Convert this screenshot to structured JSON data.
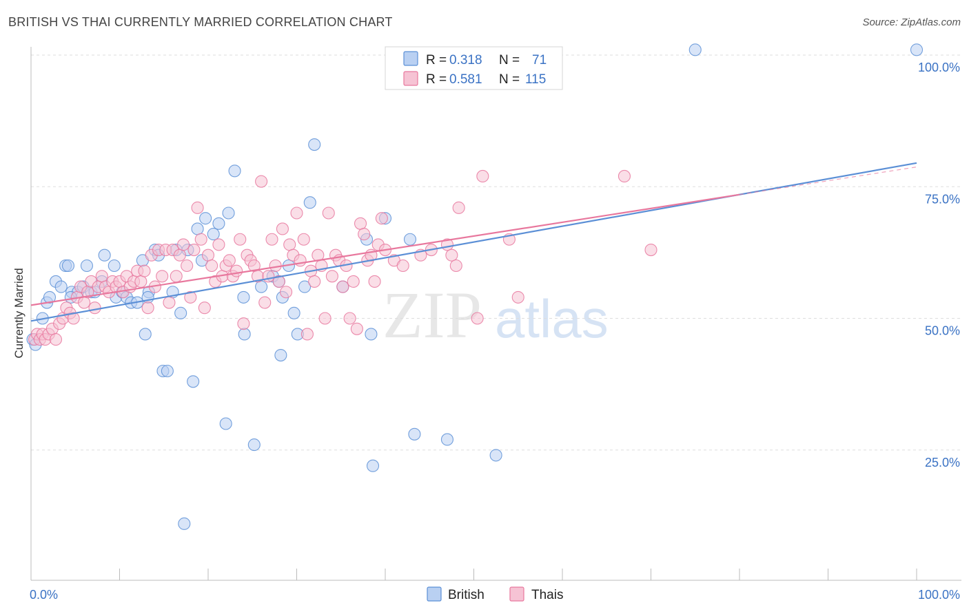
{
  "header": {
    "title": "BRITISH VS THAI CURRENTLY MARRIED CORRELATION CHART",
    "source": "Source: ZipAtlas.com"
  },
  "colors": {
    "british": "#5b8fd6",
    "british_fill": "#b9d0f2",
    "thais": "#e8779d",
    "thais_fill": "#f6c3d4",
    "axis_label": "#3a72c4",
    "grid": "#dddddd"
  },
  "legend": {
    "r_label": "R =",
    "n_label": "N =",
    "british": {
      "r": "0.318",
      "n": "71"
    },
    "thais": {
      "r": "0.581",
      "n": "115"
    }
  },
  "watermark": {
    "zip": "ZIP",
    "atlas": "atlas"
  },
  "chart_data": {
    "type": "scatter",
    "title": "BRITISH VS THAI CURRENTLY MARRIED CORRELATION CHART",
    "xlabel": "",
    "ylabel": "Currently Married",
    "xlim": [
      0,
      100
    ],
    "ylim": [
      0,
      105
    ],
    "x_tick_labels": [
      "0.0%",
      "100.0%"
    ],
    "y_ticks": [
      25,
      50,
      75,
      100
    ],
    "y_tick_labels": [
      "25.0%",
      "50.0%",
      "75.0%",
      "100.0%"
    ],
    "grid": true,
    "legend_position": "top-center",
    "series": [
      {
        "name": "British",
        "trend": {
          "x0": 0,
          "y0": 49.5,
          "x1": 100,
          "y1": 79.5
        },
        "points": [
          [
            0.2,
            46
          ],
          [
            0.5,
            45
          ],
          [
            1.3,
            50
          ],
          [
            1.8,
            53
          ],
          [
            2.1,
            54
          ],
          [
            2.8,
            57
          ],
          [
            3.4,
            56
          ],
          [
            3.9,
            60
          ],
          [
            4.2,
            60
          ],
          [
            4.6,
            55
          ],
          [
            5.3,
            55
          ],
          [
            5.9,
            56
          ],
          [
            6.3,
            60
          ],
          [
            6.8,
            55
          ],
          [
            7.2,
            55
          ],
          [
            8.0,
            57
          ],
          [
            8.3,
            62
          ],
          [
            9.4,
            60
          ],
          [
            9.6,
            54
          ],
          [
            10.3,
            55
          ],
          [
            10.8,
            54
          ],
          [
            11.3,
            53
          ],
          [
            12.0,
            53
          ],
          [
            12.6,
            61
          ],
          [
            12.9,
            47
          ],
          [
            13.3,
            55
          ],
          [
            14.0,
            63
          ],
          [
            14.4,
            62
          ],
          [
            14.9,
            40
          ],
          [
            15.4,
            40
          ],
          [
            16.0,
            55
          ],
          [
            16.4,
            63
          ],
          [
            16.9,
            51
          ],
          [
            17.3,
            11
          ],
          [
            17.7,
            63
          ],
          [
            18.3,
            38
          ],
          [
            18.8,
            67
          ],
          [
            19.3,
            61
          ],
          [
            19.7,
            69
          ],
          [
            20.6,
            66
          ],
          [
            21.2,
            68
          ],
          [
            22.0,
            30
          ],
          [
            22.3,
            70
          ],
          [
            23.0,
            78
          ],
          [
            24.0,
            54
          ],
          [
            24.1,
            47
          ],
          [
            25.2,
            26
          ],
          [
            27.3,
            58
          ],
          [
            28.0,
            57
          ],
          [
            28.2,
            43
          ],
          [
            28.4,
            54
          ],
          [
            29.1,
            60
          ],
          [
            29.7,
            51
          ],
          [
            30.1,
            47
          ],
          [
            30.9,
            56
          ],
          [
            31.5,
            72
          ],
          [
            32.0,
            83
          ],
          [
            35.2,
            56
          ],
          [
            37.9,
            65
          ],
          [
            38.6,
            22
          ],
          [
            38.4,
            47
          ],
          [
            40.0,
            69
          ],
          [
            42.8,
            65
          ],
          [
            43.3,
            28
          ],
          [
            47.0,
            27
          ],
          [
            52.5,
            24
          ],
          [
            75.0,
            101
          ],
          [
            100.0,
            101
          ],
          [
            4.5,
            54
          ],
          [
            13.2,
            54
          ],
          [
            26.0,
            56
          ]
        ]
      },
      {
        "name": "Thais",
        "trend": {
          "x0": 0,
          "y0": 52.5,
          "x1": 80,
          "y1": 73.5
        },
        "points": [
          [
            0.4,
            46
          ],
          [
            0.7,
            47
          ],
          [
            1.0,
            46
          ],
          [
            1.3,
            47
          ],
          [
            1.6,
            46
          ],
          [
            2.0,
            47
          ],
          [
            2.4,
            48
          ],
          [
            2.8,
            46
          ],
          [
            3.2,
            49
          ],
          [
            3.6,
            50
          ],
          [
            4.0,
            52
          ],
          [
            4.4,
            51
          ],
          [
            4.8,
            50
          ],
          [
            5.2,
            54
          ],
          [
            5.6,
            56
          ],
          [
            6.0,
            53
          ],
          [
            6.4,
            55
          ],
          [
            6.8,
            57
          ],
          [
            7.2,
            52
          ],
          [
            7.6,
            56
          ],
          [
            8.0,
            58
          ],
          [
            8.4,
            56
          ],
          [
            8.8,
            55
          ],
          [
            9.2,
            57
          ],
          [
            9.6,
            56
          ],
          [
            10.0,
            57
          ],
          [
            10.4,
            55
          ],
          [
            10.8,
            58
          ],
          [
            11.2,
            56
          ],
          [
            11.6,
            57
          ],
          [
            12.0,
            59
          ],
          [
            12.4,
            57
          ],
          [
            12.8,
            59
          ],
          [
            13.2,
            52
          ],
          [
            13.6,
            62
          ],
          [
            14.0,
            56
          ],
          [
            14.4,
            63
          ],
          [
            14.8,
            58
          ],
          [
            15.2,
            63
          ],
          [
            15.6,
            53
          ],
          [
            16.0,
            63
          ],
          [
            16.4,
            58
          ],
          [
            16.8,
            62
          ],
          [
            17.2,
            64
          ],
          [
            17.6,
            60
          ],
          [
            18.0,
            54
          ],
          [
            18.4,
            63
          ],
          [
            18.8,
            71
          ],
          [
            19.2,
            65
          ],
          [
            19.6,
            52
          ],
          [
            20.0,
            62
          ],
          [
            20.4,
            60
          ],
          [
            20.8,
            57
          ],
          [
            21.2,
            64
          ],
          [
            21.6,
            58
          ],
          [
            22.0,
            60
          ],
          [
            22.4,
            61
          ],
          [
            22.8,
            58
          ],
          [
            23.2,
            59
          ],
          [
            23.6,
            65
          ],
          [
            24.0,
            49
          ],
          [
            24.4,
            62
          ],
          [
            24.8,
            61
          ],
          [
            25.2,
            60
          ],
          [
            25.6,
            58
          ],
          [
            26.0,
            76
          ],
          [
            26.4,
            53
          ],
          [
            26.8,
            58
          ],
          [
            27.2,
            65
          ],
          [
            27.6,
            60
          ],
          [
            28.0,
            57
          ],
          [
            28.4,
            67
          ],
          [
            28.8,
            55
          ],
          [
            29.2,
            64
          ],
          [
            29.6,
            62
          ],
          [
            30.0,
            70
          ],
          [
            30.4,
            61
          ],
          [
            30.8,
            65
          ],
          [
            31.2,
            47
          ],
          [
            31.6,
            59
          ],
          [
            32.0,
            57
          ],
          [
            32.4,
            62
          ],
          [
            32.8,
            60
          ],
          [
            33.2,
            50
          ],
          [
            33.6,
            70
          ],
          [
            34.0,
            58
          ],
          [
            34.4,
            62
          ],
          [
            34.8,
            61
          ],
          [
            35.2,
            56
          ],
          [
            35.6,
            60
          ],
          [
            36.0,
            50
          ],
          [
            36.4,
            57
          ],
          [
            36.8,
            48
          ],
          [
            37.2,
            68
          ],
          [
            37.6,
            66
          ],
          [
            38.0,
            61
          ],
          [
            38.4,
            62
          ],
          [
            38.8,
            57
          ],
          [
            39.2,
            64
          ],
          [
            39.6,
            69
          ],
          [
            40.0,
            63
          ],
          [
            41.0,
            61
          ],
          [
            42.0,
            60
          ],
          [
            44.0,
            62
          ],
          [
            45.2,
            63
          ],
          [
            47.0,
            64
          ],
          [
            47.5,
            62
          ],
          [
            48.0,
            60
          ],
          [
            48.3,
            71
          ],
          [
            50.4,
            50
          ],
          [
            51.0,
            77
          ],
          [
            54.0,
            65
          ],
          [
            55.0,
            54
          ],
          [
            67.0,
            77
          ],
          [
            70.0,
            63
          ]
        ]
      }
    ]
  }
}
